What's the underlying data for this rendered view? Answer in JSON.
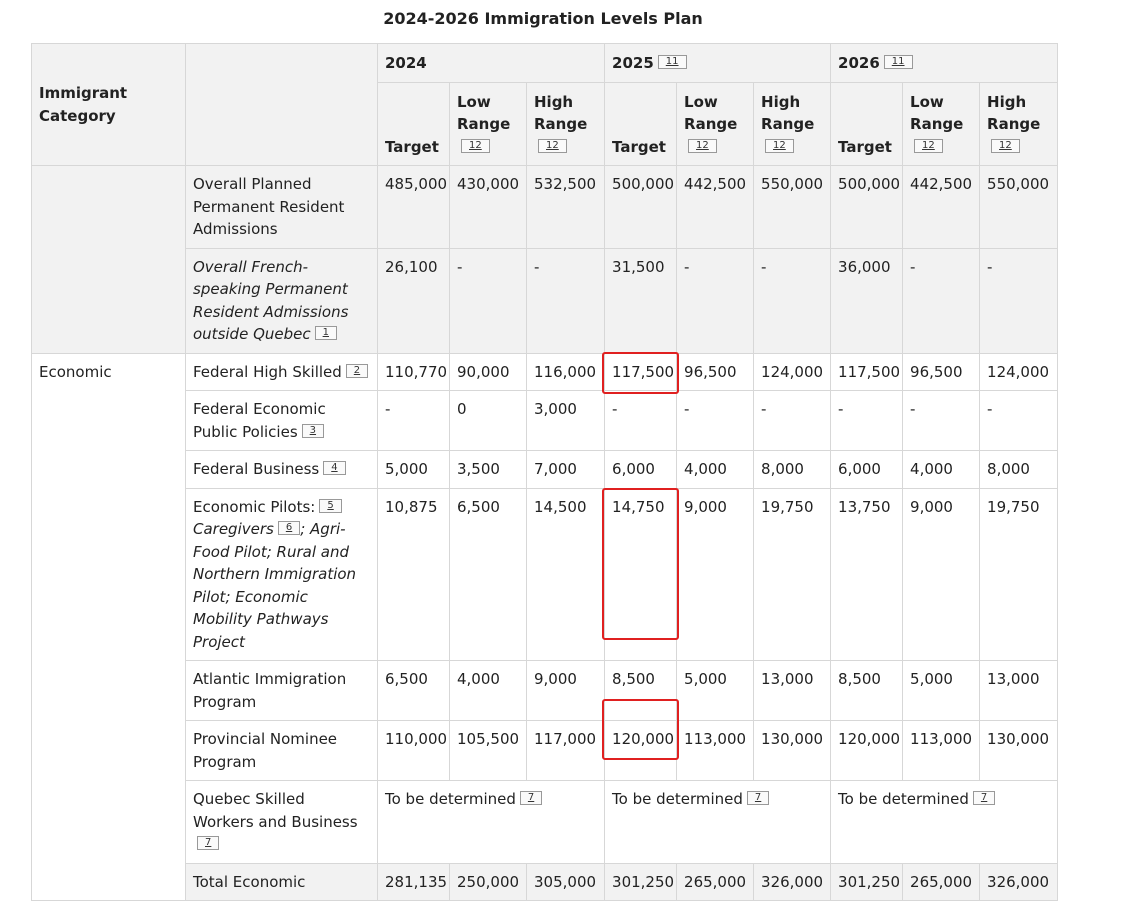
{
  "title": "2024-2026 Immigration Levels Plan",
  "header": {
    "category": "Immigrant Category",
    "years": [
      {
        "year": "2024",
        "ref": ""
      },
      {
        "year": "2025",
        "ref": "11"
      },
      {
        "year": "2026",
        "ref": "11"
      }
    ],
    "target": "Target",
    "low_range": "Low Range",
    "high_range": "High Range",
    "range_ref": "12"
  },
  "rows": {
    "overall": {
      "label": "Overall Planned Permanent Resident Admissions",
      "v": [
        "485,000",
        "430,000",
        "532,500",
        "500,000",
        "442,500",
        "550,000",
        "500,000",
        "442,500",
        "550,000"
      ]
    },
    "french": {
      "label": "Overall French-speaking Permanent Resident Admissions outside Quebec",
      "ref": "1",
      "v": [
        "26,100",
        "-",
        "-",
        "31,500",
        "-",
        "-",
        "36,000",
        "-",
        "-"
      ]
    },
    "economic_category": "Economic",
    "fhs": {
      "label": "Federal High Skilled",
      "ref": "2",
      "v": [
        "110,770",
        "90,000",
        "116,000",
        "117,500",
        "96,500",
        "124,000",
        "117,500",
        "96,500",
        "124,000"
      ]
    },
    "fepp": {
      "label": "Federal Economic Public Policies",
      "ref": "3",
      "v": [
        "-",
        "0",
        "3,000",
        "-",
        "-",
        "-",
        "-",
        "-",
        "-"
      ]
    },
    "fb": {
      "label": "Federal Business",
      "ref": "4",
      "v": [
        "5,000",
        "3,500",
        "7,000",
        "6,000",
        "4,000",
        "8,000",
        "6,000",
        "4,000",
        "8,000"
      ]
    },
    "ep": {
      "label": "Economic Pilots:",
      "ref": "5",
      "label2": "Caregivers",
      "ref2": "6",
      "label3": "; Agri-Food Pilot; Rural and Northern Immigration Pilot; Economic Mobility Pathways Project",
      "v": [
        "10,875",
        "6,500",
        "14,500",
        "14,750",
        "9,000",
        "19,750",
        "13,750",
        "9,000",
        "19,750"
      ]
    },
    "aip": {
      "label": "Atlantic Immigration Program",
      "v": [
        "6,500",
        "4,000",
        "9,000",
        "8,500",
        "5,000",
        "13,000",
        "8,500",
        "5,000",
        "13,000"
      ]
    },
    "pnp": {
      "label": "Provincial Nominee Program",
      "v": [
        "110,000",
        "105,500",
        "117,000",
        "120,000",
        "113,000",
        "130,000",
        "120,000",
        "113,000",
        "130,000"
      ]
    },
    "qsw": {
      "label": "Quebec Skilled Workers and Business",
      "ref": "7",
      "tbd": "To be determined",
      "tbd_ref": "7"
    },
    "total": {
      "label": "Total Economic",
      "v": [
        "281,135",
        "250,000",
        "305,000",
        "301,250",
        "265,000",
        "326,000",
        "301,250",
        "265,000",
        "326,000"
      ]
    }
  },
  "accent_color": "#e02020"
}
